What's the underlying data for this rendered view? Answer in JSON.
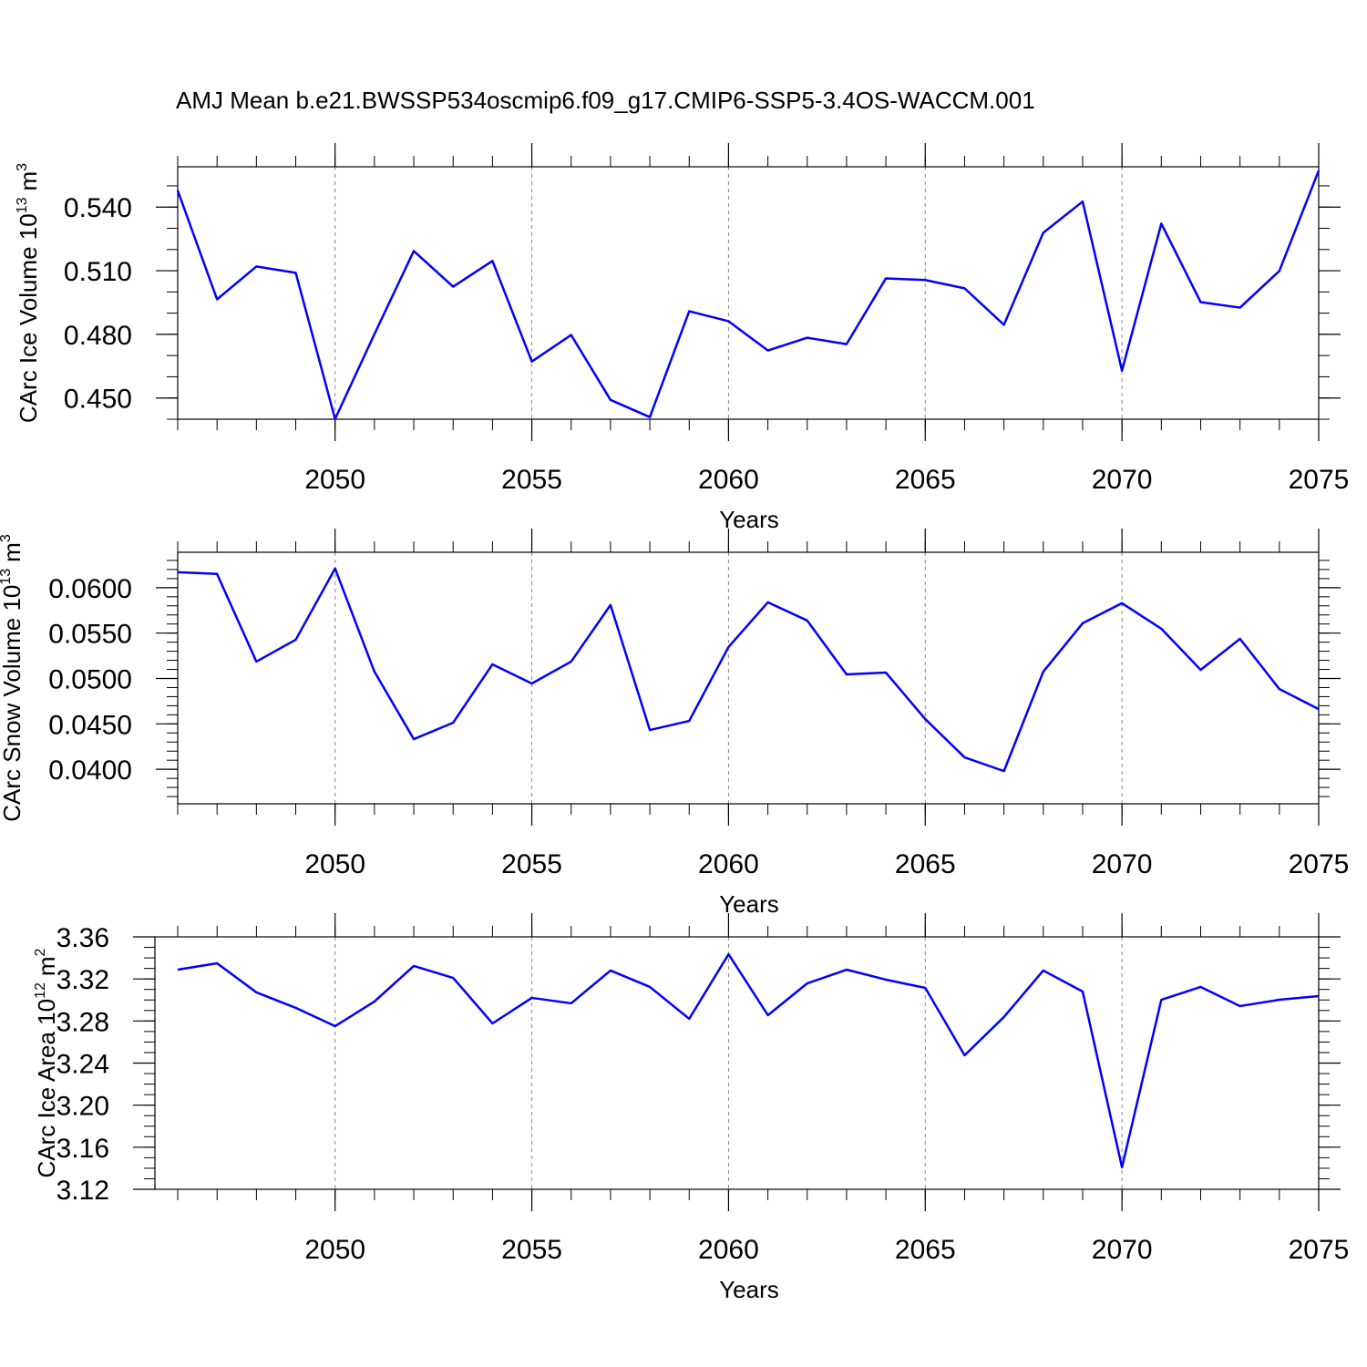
{
  "chart_data": [
    {
      "type": "line",
      "title": "AMJ Mean b.e21.BWSSP534oscmip6.f09_g17.CMIP6-SSP5-3.4OS-WACCM.001",
      "ylabel": {
        "base": "CArc Ice Volume 10",
        "power": "13",
        "unit": "m",
        "unit_power": "3"
      },
      "xlabel": "Years",
      "x": [
        2046,
        2047,
        2048,
        2049,
        2050,
        2051,
        2052,
        2053,
        2054,
        2055,
        2056,
        2057,
        2058,
        2059,
        2060,
        2061,
        2062,
        2063,
        2064,
        2065,
        2066,
        2067,
        2068,
        2069,
        2070,
        2071,
        2072,
        2073,
        2074,
        2075
      ],
      "values": [
        0.5478,
        0.4965,
        0.512,
        0.509,
        0.4401,
        0.4801,
        0.5193,
        0.5025,
        0.5146,
        0.4672,
        0.4797,
        0.4491,
        0.441,
        0.4909,
        0.4862,
        0.4724,
        0.4784,
        0.4754,
        0.5064,
        0.5056,
        0.5017,
        0.4845,
        0.5279,
        0.5426,
        0.4629,
        0.5322,
        0.4952,
        0.4926,
        0.5099,
        0.5572
      ],
      "color": "#0000ff",
      "xlim": [
        2046,
        2075
      ],
      "ylim": [
        0.44,
        0.559
      ],
      "xticks": [
        2050,
        2055,
        2060,
        2065,
        2070,
        2075
      ],
      "yticks": [
        {
          "value": 0.45,
          "label": "0.450"
        },
        {
          "value": 0.48,
          "label": "0.480"
        },
        {
          "value": 0.51,
          "label": "0.510"
        },
        {
          "value": 0.54,
          "label": "0.540"
        }
      ],
      "yminorticks": [
        0.44,
        0.45,
        0.46,
        0.47,
        0.48,
        0.49,
        0.5,
        0.51,
        0.52,
        0.53,
        0.54,
        0.55
      ],
      "xgrid": true
    },
    {
      "type": "line",
      "ylabel": {
        "base": "CArc Snow Volume 10",
        "power": "13",
        "unit": "m",
        "unit_power": "3"
      },
      "xlabel": "Years",
      "x": [
        2046,
        2047,
        2048,
        2049,
        2050,
        2051,
        2052,
        2053,
        2054,
        2055,
        2056,
        2057,
        2058,
        2059,
        2060,
        2061,
        2062,
        2063,
        2064,
        2065,
        2066,
        2067,
        2068,
        2069,
        2070,
        2071,
        2072,
        2073,
        2074,
        2075
      ],
      "values": [
        0.06171,
        0.06151,
        0.05186,
        0.05427,
        0.06211,
        0.05075,
        0.04332,
        0.04513,
        0.05156,
        0.04945,
        0.05186,
        0.05809,
        0.04432,
        0.04533,
        0.05347,
        0.05839,
        0.05638,
        0.05045,
        0.05065,
        0.04553,
        0.04131,
        0.0398,
        0.05075,
        0.05608,
        0.05829,
        0.05548,
        0.05095,
        0.05437,
        0.04884,
        0.04663
      ],
      "color": "#0000ff",
      "xlim": [
        2046,
        2075
      ],
      "ylim": [
        0.0362,
        0.0639
      ],
      "xticks": [
        2050,
        2055,
        2060,
        2065,
        2070,
        2075
      ],
      "yticks": [
        {
          "value": 0.04,
          "label": "0.0400"
        },
        {
          "value": 0.045,
          "label": "0.0450"
        },
        {
          "value": 0.05,
          "label": "0.0500"
        },
        {
          "value": 0.055,
          "label": "0.0550"
        },
        {
          "value": 0.06,
          "label": "0.0600"
        }
      ],
      "yminorticks": [
        0.037,
        0.038,
        0.039,
        0.04,
        0.041,
        0.042,
        0.043,
        0.044,
        0.045,
        0.046,
        0.047,
        0.048,
        0.049,
        0.05,
        0.051,
        0.052,
        0.053,
        0.054,
        0.055,
        0.056,
        0.057,
        0.058,
        0.059,
        0.06,
        0.061,
        0.062,
        0.063
      ],
      "xgrid": true
    },
    {
      "type": "line",
      "ylabel": {
        "base": "CArc Ice Area 10",
        "power": "12",
        "unit": "m",
        "unit_power": "2"
      },
      "xlabel": "Years",
      "x": [
        2046,
        2047,
        2048,
        2049,
        2050,
        2051,
        2052,
        2053,
        2054,
        2055,
        2056,
        2057,
        2058,
        2059,
        2060,
        2061,
        2062,
        2063,
        2064,
        2065,
        2066,
        2067,
        2068,
        2069,
        2070,
        2071,
        2072,
        2073,
        2074,
        2075
      ],
      "values": [
        3.3288,
        3.3349,
        3.3072,
        3.2925,
        3.2751,
        3.2985,
        3.3323,
        3.321,
        3.2777,
        3.302,
        3.2968,
        3.328,
        3.3124,
        3.2821,
        3.3435,
        3.2855,
        3.3158,
        3.3288,
        3.3193,
        3.3115,
        3.2474,
        3.2838,
        3.328,
        3.308,
        3.1409,
        3.3002,
        3.3124,
        3.2942,
        3.3002,
        3.3037
      ],
      "color": "#0000ff",
      "xlim": [
        2045.42,
        2075
      ],
      "ylim": [
        3.12,
        3.36
      ],
      "xticks": [
        2050,
        2055,
        2060,
        2065,
        2070,
        2075
      ],
      "yticks": [
        3.12,
        3.16,
        {
          "value": 3.2,
          "label": "3.20"
        },
        3.24,
        3.28,
        3.32,
        3.36
      ],
      "yminorticks": [
        3.12,
        3.13,
        3.14,
        3.15,
        3.16,
        3.17,
        3.18,
        3.19,
        3.2,
        3.21,
        3.22,
        3.23,
        3.24,
        3.25,
        3.26,
        3.27,
        3.28,
        3.29,
        3.3,
        3.31,
        3.32,
        3.33,
        3.34,
        3.35,
        3.36
      ],
      "xgrid": true
    }
  ]
}
